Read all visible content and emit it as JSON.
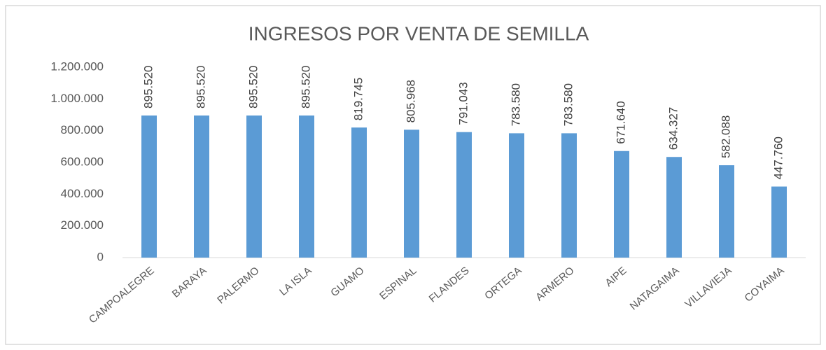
{
  "chart_data": {
    "type": "bar",
    "title": "INGRESOS POR VENTA DE SEMILLA",
    "categories": [
      "CAMPOALEGRE",
      "BARAYA",
      "PALERMO",
      "LA ISLA",
      "GUAMO",
      "ESPINAL",
      "FLANDES",
      "ORTEGA",
      "ARMERO",
      "AIPE",
      "NATAGAIMA",
      "VILLAVIEJA",
      "COYAIMA"
    ],
    "values": [
      895520,
      895520,
      895520,
      895520,
      819745,
      805968,
      791043,
      783580,
      783580,
      671640,
      634327,
      582088,
      447760
    ],
    "value_labels": [
      "895.520",
      "895.520",
      "895.520",
      "895.520",
      "819.745",
      "805.968",
      "791.043",
      "783.580",
      "783.580",
      "671.640",
      "634.327",
      "582.088",
      "447.760"
    ],
    "color": "#5b9bd5",
    "ylim": [
      0,
      1200000
    ],
    "yticks": [
      0,
      {
        "value": 200000,
        "label": "200.000"
      },
      {
        "value": 400000,
        "label": "400.000"
      },
      {
        "value": 600000,
        "label": "600.000"
      },
      {
        "value": 800000,
        "label": "800.000"
      },
      {
        "value": 1000000,
        "label": "1.000.000"
      },
      {
        "value": 1200000,
        "label": "1.200.000"
      }
    ],
    "grid": false
  }
}
